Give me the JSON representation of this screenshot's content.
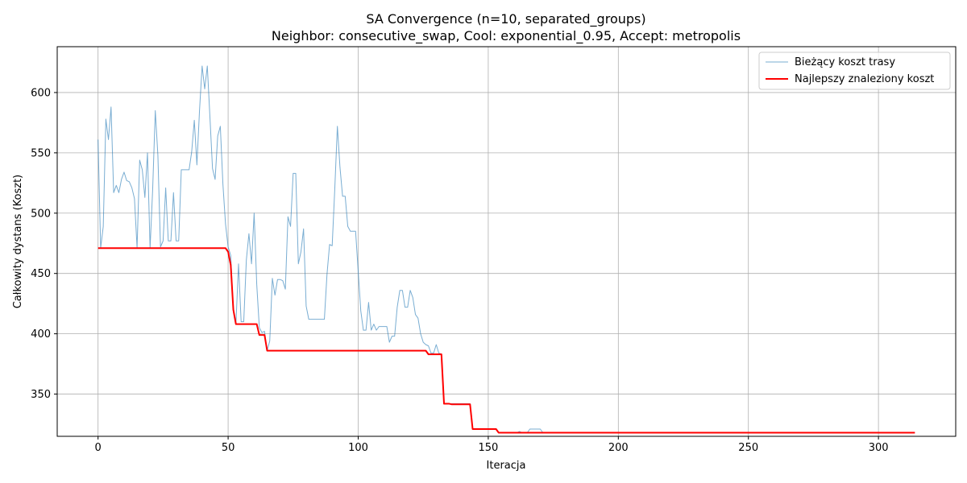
{
  "chart_data": {
    "type": "line",
    "title": "SA Convergence (n=10, separated_groups)",
    "subtitle": "Neighbor: consecutive_swap, Cool: exponential_0.95, Accept: metropolis",
    "xlabel": "Iteracja",
    "ylabel": "Całkowity dystans (Koszt)",
    "xlim": [
      -15.7,
      329.7
    ],
    "ylim": [
      315,
      638
    ],
    "xticks": [
      0,
      50,
      100,
      150,
      200,
      250,
      300
    ],
    "yticks": [
      350,
      400,
      450,
      500,
      550,
      600
    ],
    "grid": true,
    "legend_position": "top-right",
    "series": [
      {
        "name": "Bieżący koszt trasy",
        "color": "#1f77b4",
        "line_width": 1,
        "opacity": 0.6,
        "points": [
          [
            0,
            561
          ],
          [
            1,
            471
          ],
          [
            2,
            489
          ],
          [
            3,
            578
          ],
          [
            4,
            561
          ],
          [
            5,
            588
          ],
          [
            6,
            517
          ],
          [
            7,
            523
          ],
          [
            8,
            517
          ],
          [
            9,
            528
          ],
          [
            10,
            534
          ],
          [
            11,
            527
          ],
          [
            12,
            526
          ],
          [
            13,
            521
          ],
          [
            14,
            512
          ],
          [
            15,
            471
          ],
          [
            16,
            544
          ],
          [
            17,
            536
          ],
          [
            18,
            513
          ],
          [
            19,
            550
          ],
          [
            20,
            471
          ],
          [
            21,
            520
          ],
          [
            22,
            585
          ],
          [
            23,
            548
          ],
          [
            24,
            472
          ],
          [
            25,
            477
          ],
          [
            26,
            521
          ],
          [
            27,
            477
          ],
          [
            28,
            477
          ],
          [
            29,
            517
          ],
          [
            30,
            477
          ],
          [
            31,
            477
          ],
          [
            32,
            536
          ],
          [
            33,
            536
          ],
          [
            34,
            536
          ],
          [
            35,
            536
          ],
          [
            36,
            551
          ],
          [
            37,
            577
          ],
          [
            38,
            540
          ],
          [
            39,
            585
          ],
          [
            40,
            622
          ],
          [
            41,
            603
          ],
          [
            42,
            622
          ],
          [
            43,
            580
          ],
          [
            44,
            537
          ],
          [
            45,
            528
          ],
          [
            46,
            564
          ],
          [
            47,
            572
          ],
          [
            48,
            524
          ],
          [
            49,
            491
          ],
          [
            50,
            472
          ],
          [
            51,
            465
          ],
          [
            52,
            420
          ],
          [
            53,
            408
          ],
          [
            54,
            458
          ],
          [
            55,
            410
          ],
          [
            56,
            410
          ],
          [
            57,
            461
          ],
          [
            58,
            483
          ],
          [
            59,
            458
          ],
          [
            60,
            500
          ],
          [
            61,
            441
          ],
          [
            62,
            405
          ],
          [
            63,
            401
          ],
          [
            64,
            402
          ],
          [
            65,
            386
          ],
          [
            66,
            394
          ],
          [
            67,
            446
          ],
          [
            68,
            432
          ],
          [
            69,
            445
          ],
          [
            70,
            445
          ],
          [
            71,
            444
          ],
          [
            72,
            437
          ],
          [
            73,
            497
          ],
          [
            74,
            489
          ],
          [
            75,
            533
          ],
          [
            76,
            533
          ],
          [
            77,
            458
          ],
          [
            78,
            468
          ],
          [
            79,
            487
          ],
          [
            80,
            423
          ],
          [
            81,
            412
          ],
          [
            82,
            412
          ],
          [
            83,
            412
          ],
          [
            84,
            412
          ],
          [
            85,
            412
          ],
          [
            86,
            412
          ],
          [
            87,
            412
          ],
          [
            88,
            449
          ],
          [
            89,
            474
          ],
          [
            90,
            473
          ],
          [
            91,
            520
          ],
          [
            92,
            572
          ],
          [
            93,
            538
          ],
          [
            94,
            514
          ],
          [
            95,
            514
          ],
          [
            96,
            489
          ],
          [
            97,
            485
          ],
          [
            98,
            485
          ],
          [
            99,
            485
          ],
          [
            100,
            452
          ],
          [
            101,
            419
          ],
          [
            102,
            403
          ],
          [
            103,
            403
          ],
          [
            104,
            426
          ],
          [
            105,
            403
          ],
          [
            106,
            408
          ],
          [
            107,
            403
          ],
          [
            108,
            406
          ],
          [
            109,
            406
          ],
          [
            110,
            406
          ],
          [
            111,
            406
          ],
          [
            112,
            393
          ],
          [
            113,
            398
          ],
          [
            114,
            398
          ],
          [
            115,
            422
          ],
          [
            116,
            436
          ],
          [
            117,
            436
          ],
          [
            118,
            422
          ],
          [
            119,
            422
          ],
          [
            120,
            436
          ],
          [
            121,
            430
          ],
          [
            122,
            416
          ],
          [
            123,
            413
          ],
          [
            124,
            400
          ],
          [
            125,
            393
          ],
          [
            126,
            391
          ],
          [
            127,
            390
          ],
          [
            128,
            384
          ],
          [
            129,
            384
          ],
          [
            130,
            391
          ],
          [
            131,
            384
          ],
          [
            132,
            383
          ],
          [
            133,
            342
          ],
          [
            134,
            342
          ],
          [
            135,
            342
          ],
          [
            136,
            342
          ],
          [
            137,
            342
          ],
          [
            138,
            342
          ],
          [
            139,
            342
          ],
          [
            140,
            342
          ],
          [
            141,
            342
          ],
          [
            142,
            342
          ],
          [
            143,
            342
          ],
          [
            144,
            321
          ],
          [
            145,
            321
          ],
          [
            146,
            321
          ],
          [
            147,
            321
          ],
          [
            148,
            321
          ],
          [
            149,
            321
          ],
          [
            150,
            321
          ],
          [
            151,
            321
          ],
          [
            152,
            321
          ],
          [
            153,
            321
          ],
          [
            154,
            318
          ],
          [
            155,
            318
          ],
          [
            156,
            318
          ],
          [
            157,
            318
          ],
          [
            158,
            318
          ],
          [
            159,
            318
          ],
          [
            160,
            318
          ],
          [
            161,
            318
          ],
          [
            162,
            319
          ],
          [
            163,
            318
          ],
          [
            164,
            318
          ],
          [
            165,
            318
          ],
          [
            166,
            321
          ],
          [
            167,
            321
          ],
          [
            168,
            321
          ],
          [
            169,
            321
          ],
          [
            170,
            321
          ],
          [
            171,
            318
          ],
          [
            314,
            318
          ]
        ]
      },
      {
        "name": "Najlepszy znaleziony koszt",
        "color": "#ff0000",
        "line_width": 2,
        "opacity": 1,
        "points": [
          [
            0,
            471
          ],
          [
            49,
            471
          ],
          [
            50,
            468
          ],
          [
            51,
            457
          ],
          [
            52,
            420
          ],
          [
            53,
            408
          ],
          [
            60,
            408
          ],
          [
            61,
            408
          ],
          [
            62,
            399
          ],
          [
            64,
            399
          ],
          [
            65,
            386
          ],
          [
            126,
            386
          ],
          [
            127,
            383
          ],
          [
            132,
            383
          ],
          [
            133,
            342
          ],
          [
            135,
            342
          ],
          [
            136,
            341.5
          ],
          [
            143,
            341.5
          ],
          [
            144,
            321
          ],
          [
            153,
            321
          ],
          [
            154,
            318
          ],
          [
            314,
            318
          ]
        ]
      }
    ]
  }
}
